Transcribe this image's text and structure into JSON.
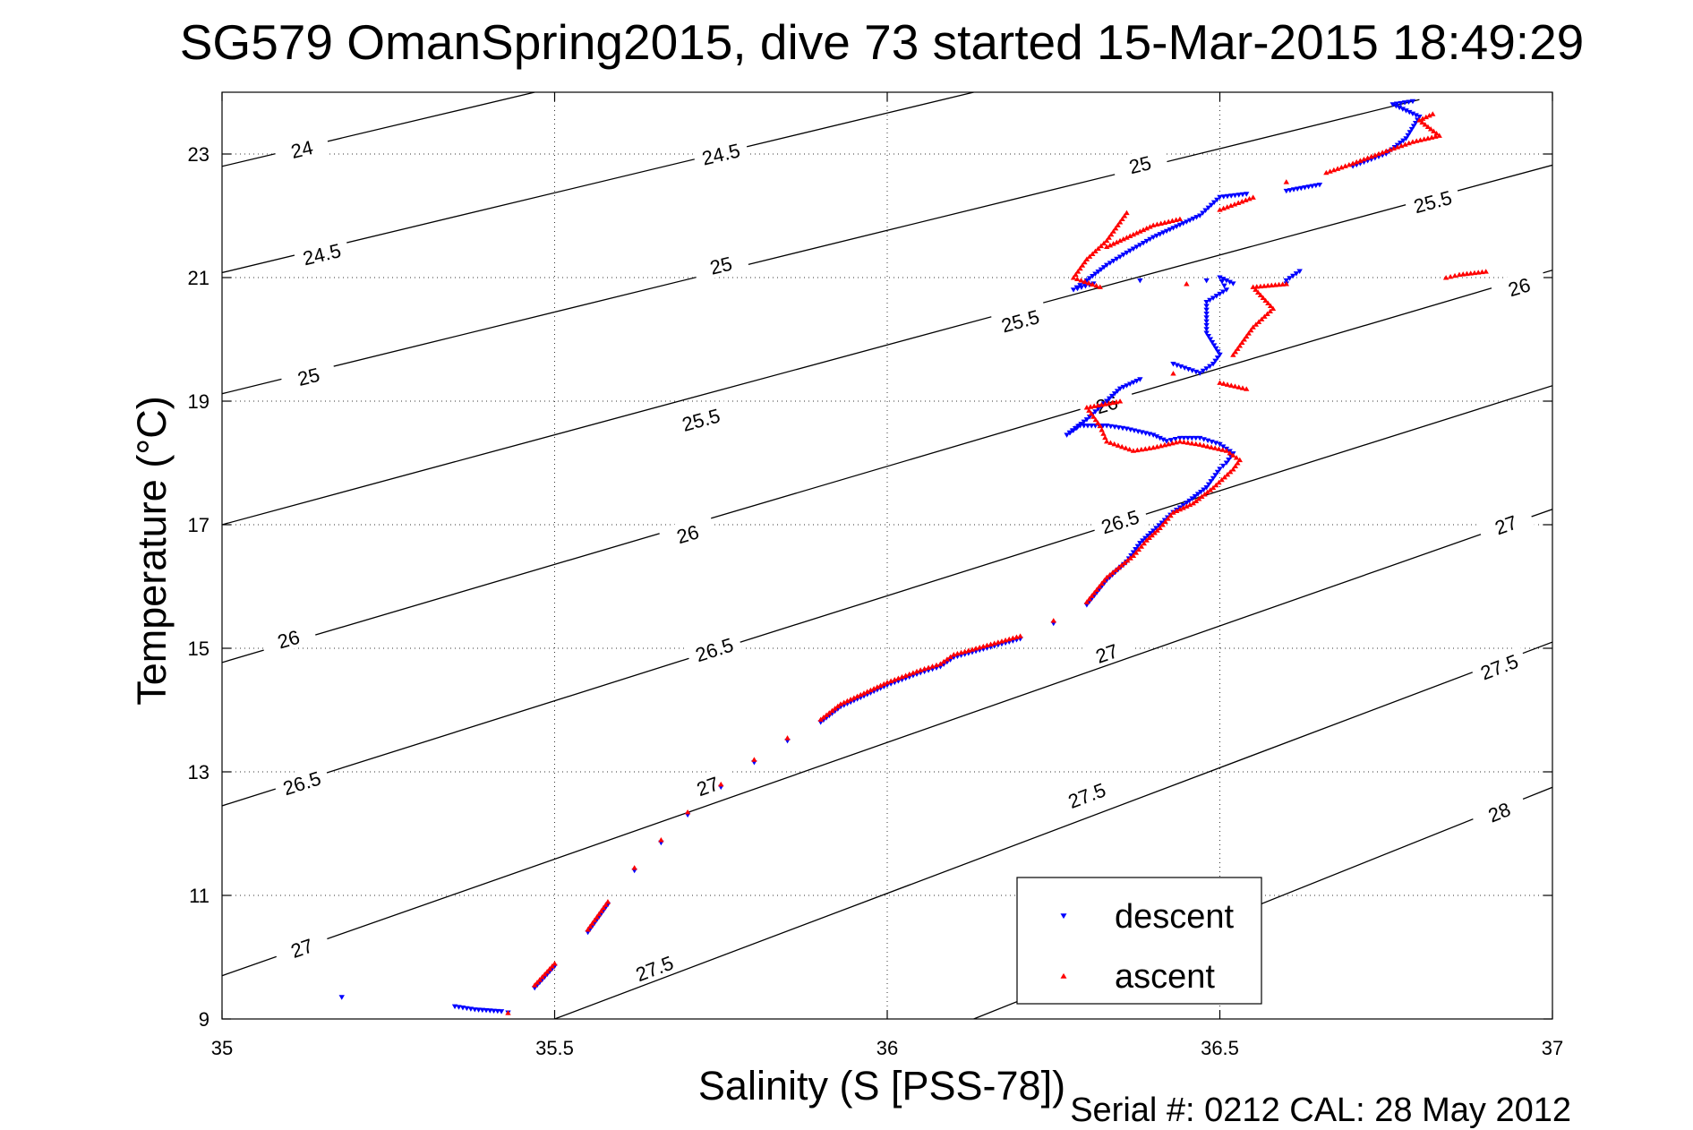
{
  "chart_data": {
    "type": "scatter",
    "title": "SG579 OmanSpring2015, dive 73 started 15-Mar-2015 18:49:29",
    "xlabel": "Salinity (S [PSS-78])",
    "ylabel": "Temperature (°C)",
    "footer": "Serial #: 0212  CAL: 28 May 2012",
    "xlim": [
      35,
      37
    ],
    "ylim": [
      9,
      24
    ],
    "xticks": [
      "35",
      "35.5",
      "36",
      "36.5",
      "37"
    ],
    "yticks": [
      "9",
      "11",
      "13",
      "15",
      "17",
      "19",
      "21",
      "23"
    ],
    "grid": true,
    "legend_position": "bottom-right",
    "density_contours": [
      {
        "label": "24",
        "points": [
          [
            35.0,
            22.8
          ],
          [
            35.47,
            24.0
          ]
        ],
        "label_at": [
          35.12,
          23.08
        ]
      },
      {
        "label": "24.5",
        "points": [
          [
            35.0,
            21.08
          ],
          [
            36.13,
            24.0
          ]
        ],
        "label_at": [
          35.15,
          21.38
        ],
        "label2_at": [
          35.75,
          23.0
        ]
      },
      {
        "label": "25",
        "points": [
          [
            35.0,
            19.12
          ],
          [
            36.8,
            23.88
          ]
        ],
        "label_at": [
          35.13,
          19.4
        ],
        "label2_at": [
          35.75,
          21.2
        ],
        "label3_at": [
          36.38,
          22.83
        ]
      },
      {
        "label": "25.5",
        "points": [
          [
            35.0,
            17.0
          ],
          [
            37.0,
            22.82
          ]
        ],
        "label_at": [
          35.72,
          18.7
        ],
        "label2_at": [
          36.2,
          20.3
        ],
        "label3_at": [
          36.82,
          22.23
        ]
      },
      {
        "label": "26",
        "points": [
          [
            35.0,
            14.77
          ],
          [
            37.0,
            21.12
          ]
        ],
        "label_at": [
          35.1,
          15.15
        ],
        "label2_at": [
          35.7,
          16.85
        ],
        "label3_at": [
          36.33,
          18.95
        ],
        "label4_at": [
          36.95,
          20.85
        ]
      },
      {
        "label": "26.5",
        "points": [
          [
            35.0,
            12.45
          ],
          [
            37.0,
            19.25
          ]
        ],
        "label_at": [
          35.12,
          12.82
        ],
        "label2_at": [
          35.74,
          14.98
        ],
        "label3_at": [
          36.35,
          17.05
        ]
      },
      {
        "label": "27",
        "points": [
          [
            35.0,
            9.7
          ],
          [
            37.0,
            17.25
          ]
        ],
        "label_at": [
          35.12,
          10.15
        ],
        "label2_at": [
          35.73,
          12.77
        ],
        "label3_at": [
          36.33,
          14.92
        ],
        "label4_at": [
          36.93,
          17.0
        ]
      },
      {
        "label": "27.5",
        "points": [
          [
            35.5,
            9.0
          ],
          [
            37.0,
            15.1
          ]
        ],
        "label_at": [
          35.65,
          9.82
        ],
        "label2_at": [
          36.3,
          12.62
        ],
        "label3_at": [
          36.92,
          14.7
        ]
      },
      {
        "label": "28",
        "points": [
          [
            36.13,
            9.0
          ],
          [
            37.0,
            12.75
          ]
        ],
        "label_at": [
          36.92,
          12.35
        ]
      }
    ],
    "series": [
      {
        "name": "descent",
        "color": "#0000ff",
        "marker": "triangle-down",
        "x": [
          35.18,
          35.35,
          35.38,
          35.42,
          35.43,
          35.47,
          35.5,
          35.55,
          35.58,
          35.62,
          35.66,
          35.7,
          35.75,
          35.8,
          35.85,
          35.9,
          35.93,
          35.96,
          36.0,
          36.05,
          36.08,
          36.1,
          36.15,
          36.2,
          36.25,
          36.3,
          36.33,
          36.36,
          36.38,
          36.4,
          36.43,
          36.45,
          36.48,
          36.5,
          36.51,
          36.52,
          36.5,
          36.47,
          36.44,
          36.42,
          36.4,
          36.36,
          36.33,
          36.29,
          36.27,
          36.3,
          36.33,
          36.35,
          36.38,
          36.43,
          36.47,
          36.49,
          36.5,
          36.48,
          36.48,
          36.51,
          36.5,
          36.52,
          36.6,
          36.62,
          36.48,
          36.6,
          36.38,
          36.31,
          36.28,
          36.3,
          36.33,
          36.36,
          36.4,
          36.44,
          36.47,
          36.5,
          36.54,
          36.6,
          36.65,
          36.7,
          36.75,
          36.78,
          36.8,
          36.76,
          36.79
        ],
        "y": [
          9.35,
          9.2,
          9.15,
          9.12,
          9.1,
          9.5,
          9.85,
          10.4,
          10.85,
          11.4,
          11.85,
          12.3,
          12.75,
          13.15,
          13.5,
          13.8,
          14.05,
          14.2,
          14.4,
          14.6,
          14.7,
          14.85,
          15.0,
          15.15,
          15.4,
          15.7,
          16.1,
          16.4,
          16.7,
          16.9,
          17.2,
          17.35,
          17.6,
          17.9,
          18.0,
          18.15,
          18.3,
          18.4,
          18.4,
          18.35,
          18.45,
          18.55,
          18.6,
          18.6,
          18.45,
          18.7,
          19.0,
          19.2,
          19.35,
          19.6,
          19.45,
          19.6,
          19.75,
          20.1,
          20.6,
          20.8,
          21.0,
          20.9,
          20.95,
          21.1,
          20.95,
          20.9,
          20.95,
          20.9,
          20.8,
          20.95,
          21.2,
          21.4,
          21.65,
          21.85,
          22.0,
          22.3,
          22.35,
          22.4,
          22.5,
          22.8,
          23.0,
          23.25,
          23.6,
          23.8,
          23.85
        ]
      },
      {
        "name": "ascent",
        "color": "#ff0000",
        "marker": "triangle-up",
        "x": [
          35.43,
          35.47,
          35.5,
          35.55,
          35.58,
          35.62,
          35.66,
          35.7,
          35.75,
          35.8,
          35.85,
          35.9,
          35.93,
          35.96,
          36.0,
          36.05,
          36.08,
          36.1,
          36.15,
          36.2,
          36.25,
          36.3,
          36.33,
          36.37,
          36.39,
          36.41,
          36.43,
          36.46,
          36.49,
          36.52,
          36.53,
          36.51,
          36.47,
          36.44,
          36.4,
          36.37,
          36.33,
          36.32,
          36.3,
          36.35,
          36.43,
          36.5,
          36.54,
          36.52,
          36.55,
          36.58,
          36.55,
          36.6,
          36.45,
          36.32,
          36.28,
          36.3,
          36.33,
          36.35,
          36.36,
          36.33,
          36.37,
          36.4,
          36.44,
          36.5,
          36.55,
          36.6,
          36.66,
          36.7,
          36.75,
          36.79,
          36.83,
          36.8,
          36.82,
          36.84,
          36.86,
          36.9
        ],
        "y": [
          9.1,
          9.55,
          9.9,
          10.45,
          10.9,
          11.45,
          11.9,
          12.35,
          12.8,
          13.2,
          13.55,
          13.85,
          14.1,
          14.25,
          14.45,
          14.65,
          14.75,
          14.9,
          15.05,
          15.2,
          15.45,
          15.75,
          16.15,
          16.5,
          16.75,
          16.95,
          17.2,
          17.35,
          17.6,
          17.9,
          18.05,
          18.2,
          18.3,
          18.35,
          18.25,
          18.2,
          18.35,
          18.6,
          18.9,
          19.0,
          19.45,
          19.3,
          19.2,
          19.75,
          20.2,
          20.5,
          20.85,
          20.9,
          20.9,
          20.85,
          21.0,
          21.3,
          21.6,
          21.9,
          22.05,
          21.5,
          21.7,
          21.85,
          21.95,
          22.1,
          22.3,
          22.55,
          22.7,
          22.85,
          23.05,
          23.2,
          23.3,
          23.55,
          23.65,
          21.0,
          21.05,
          21.1
        ]
      }
    ]
  }
}
